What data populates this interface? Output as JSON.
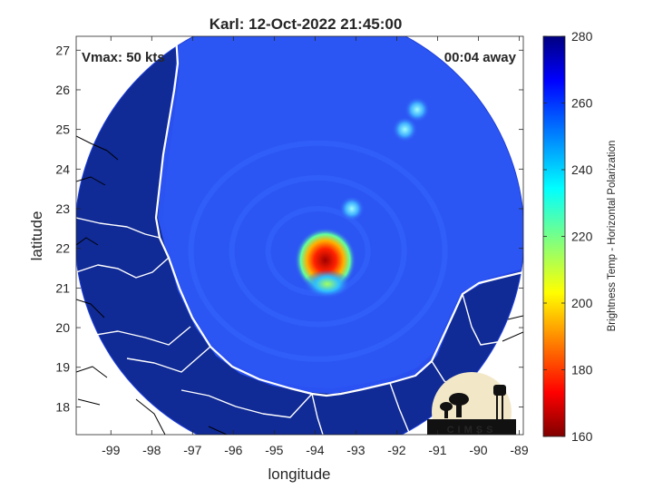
{
  "chart_data": {
    "type": "heatmap",
    "title": "Karl: 12-Oct-2022 21:45:00",
    "xlabel": "longitude",
    "ylabel": "latitude",
    "xlim": [
      -99.85,
      -88.9
    ],
    "ylim": [
      17.3,
      27.35
    ],
    "x_ticks": [
      -99,
      -98,
      -97,
      -96,
      -95,
      -94,
      -93,
      -92,
      -91,
      -90,
      -89
    ],
    "y_ticks": [
      18,
      19,
      20,
      21,
      22,
      23,
      24,
      25,
      26,
      27
    ],
    "annotations": {
      "vmax": "Vmax: 50 kts",
      "time_offset": "00:04 away"
    },
    "colorbar": {
      "label": "Brightness Temp - Horizontal Polarization",
      "range": [
        160,
        280
      ],
      "ticks": [
        160,
        180,
        200,
        220,
        240,
        260,
        280
      ],
      "colormap": "jet"
    },
    "swath": {
      "center_lon": -94.38,
      "center_lat": 22.35,
      "radius_deg": 5.5
    },
    "features": [
      {
        "kind": "core",
        "lon": -93.75,
        "lat": 21.7,
        "value": 180
      },
      {
        "kind": "rain_band",
        "lon": -93.7,
        "lat": 21.1,
        "value": 232
      },
      {
        "kind": "cloud_cluster",
        "lon": -91.8,
        "lat": 25.0,
        "value": 240
      },
      {
        "kind": "cloud_cluster",
        "lon": -93.1,
        "lat": 23.0,
        "value": 245
      },
      {
        "kind": "cloud_cluster",
        "lon": -91.5,
        "lat": 25.5,
        "value": 238
      }
    ],
    "grid": false,
    "gridlines": false
  },
  "logo": {
    "text": "CIMSS"
  },
  "colors": {
    "ocean": "#2a52f2",
    "land": "#102a96",
    "boundary": "#ffffff",
    "outside_map": "#000000"
  }
}
